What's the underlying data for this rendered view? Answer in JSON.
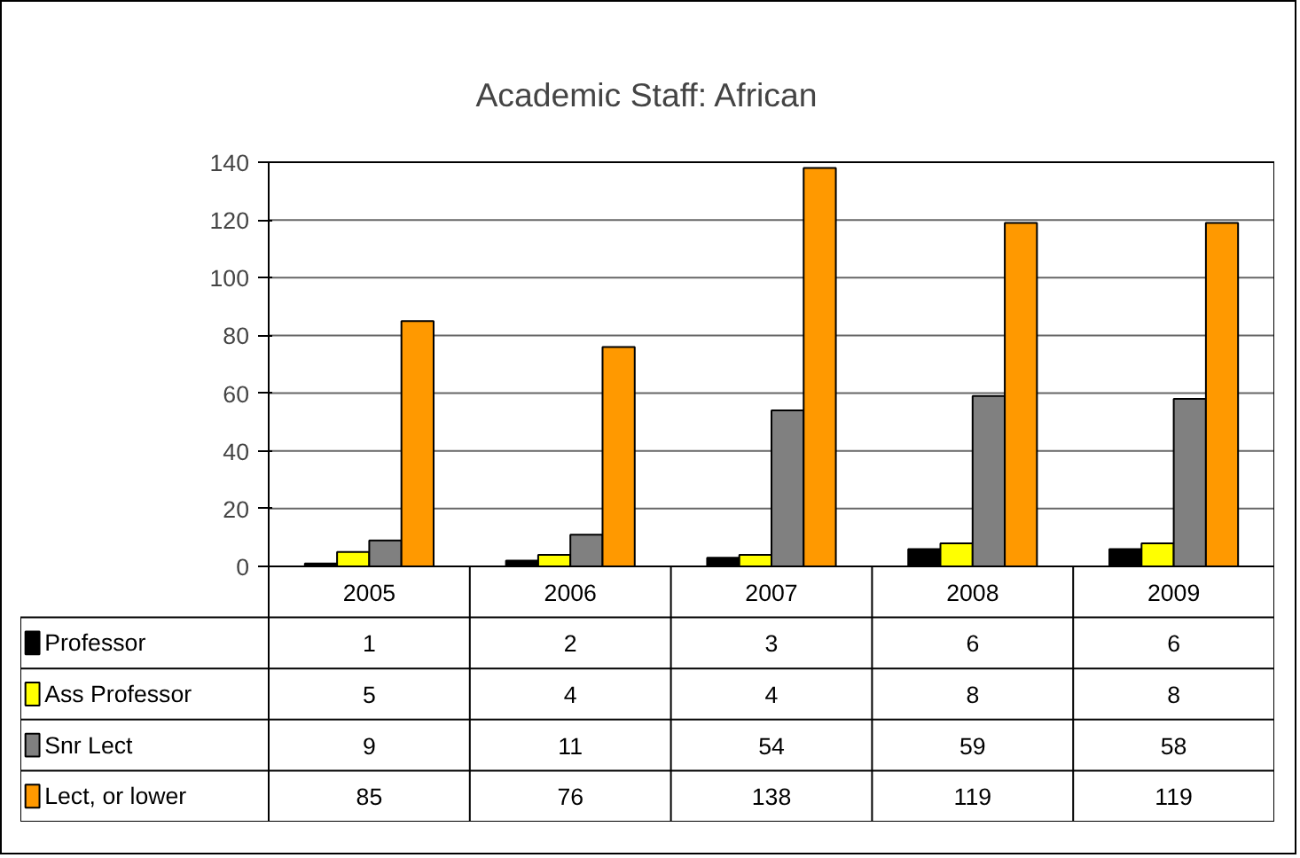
{
  "chart_data": {
    "type": "bar",
    "title": "Academic Staff: African",
    "categories": [
      "2005",
      "2006",
      "2007",
      "2008",
      "2009"
    ],
    "series": [
      {
        "name": "Professor",
        "color": "#000000",
        "values": [
          1,
          2,
          3,
          6,
          6
        ]
      },
      {
        "name": "Ass Professor",
        "color": "#ffff00",
        "values": [
          5,
          4,
          4,
          8,
          8
        ]
      },
      {
        "name": "Snr Lect",
        "color": "#808080",
        "values": [
          9,
          11,
          54,
          59,
          58
        ]
      },
      {
        "name": "Lect, or lower",
        "color": "#ff9900",
        "values": [
          85,
          76,
          138,
          119,
          119
        ]
      }
    ],
    "ylim": [
      0,
      140
    ],
    "yticks": [
      0,
      20,
      40,
      60,
      80,
      100,
      120,
      140
    ],
    "grid": "y",
    "data_labels": true,
    "legend": "bottom"
  }
}
